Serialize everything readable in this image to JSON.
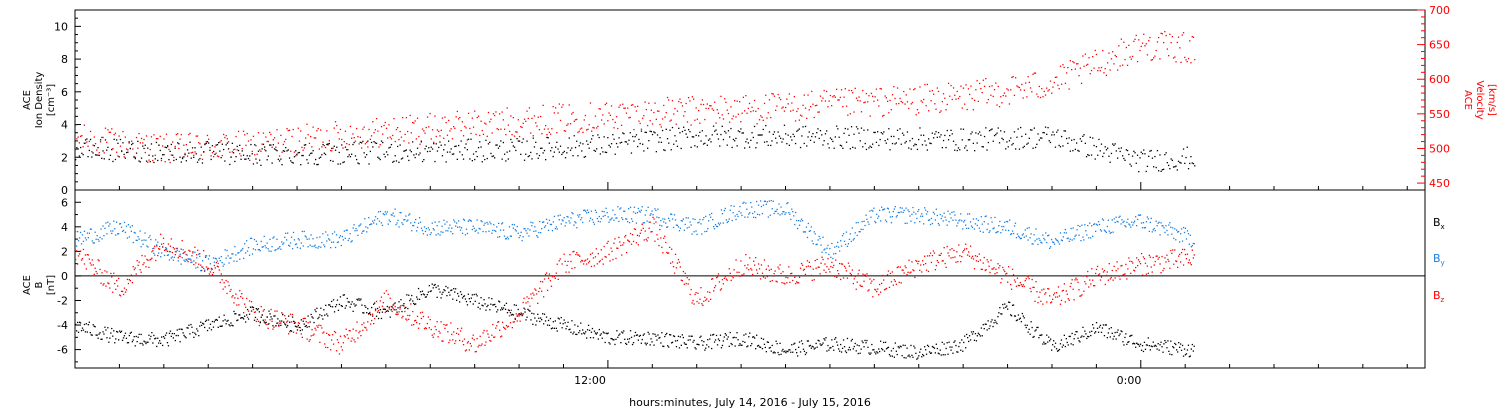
{
  "chart_data": [
    {
      "type": "scatter",
      "panel": "top",
      "ylabel_left": [
        "ACE",
        "Ion Density",
        "[cm⁻³]"
      ],
      "ylabel_right": [
        "ACE",
        "Velocity",
        "[km/s]"
      ],
      "ylim_left": [
        0,
        11
      ],
      "yticks_left": [
        0,
        2,
        4,
        6,
        8,
        10
      ],
      "ylim_right": [
        440,
        700
      ],
      "yticks_right": [
        450,
        500,
        550,
        600,
        650,
        700
      ],
      "colors": {
        "density": "#000000",
        "velocity": "#ff0000"
      },
      "series": [
        {
          "name": "Density",
          "axis": "left",
          "x": [
            0,
            2,
            4,
            6,
            8,
            10,
            12,
            14,
            16,
            18,
            20,
            22,
            24,
            25.2
          ],
          "y": [
            2.5,
            2.4,
            2.2,
            2.3,
            2.4,
            2.5,
            2.8,
            3.3,
            3.3,
            3.2,
            3.1,
            3.3,
            1.8,
            2.0
          ]
        },
        {
          "name": "Velocity",
          "axis": "right",
          "x": [
            0,
            2,
            4,
            6,
            8,
            10,
            12,
            14,
            16,
            18,
            20,
            22,
            24,
            25.2
          ],
          "y": [
            515,
            500,
            505,
            520,
            530,
            540,
            548,
            555,
            560,
            568,
            575,
            595,
            650,
            645
          ]
        }
      ]
    },
    {
      "type": "scatter",
      "panel": "bottom",
      "ylabel_left": [
        "ACE",
        "B",
        "[nT]"
      ],
      "ylim": [
        -7.5,
        7
      ],
      "yticks": [
        -6,
        -4,
        -2,
        0,
        2,
        4,
        6
      ],
      "zero_line": true,
      "legend": [
        "B",
        "B",
        "B"
      ],
      "legend_subscripts": [
        "x",
        "y",
        "z"
      ],
      "colors": {
        "bx": "#000000",
        "by": "#1a7fe0",
        "bz": "#ff0000"
      },
      "series": [
        {
          "name": "Bx",
          "x": [
            0,
            1,
            2,
            3,
            4,
            5,
            6,
            7,
            8,
            9,
            10,
            11,
            12,
            13,
            14,
            15,
            16,
            17,
            18,
            19,
            20,
            21,
            22,
            23,
            24,
            25.2
          ],
          "y": [
            -4,
            -5,
            -5.2,
            -4,
            -3,
            -4,
            -2,
            -3,
            -1,
            -2,
            -3,
            -4,
            -5,
            -5,
            -5.5,
            -5,
            -6,
            -5.5,
            -5.8,
            -6.2,
            -5.5,
            -2.5,
            -5.8,
            -4.2,
            -5.5,
            -6
          ]
        },
        {
          "name": "By",
          "x": [
            0,
            1,
            2,
            3,
            4,
            5,
            6,
            7,
            8,
            9,
            10,
            11,
            12,
            13,
            14,
            15,
            16,
            17,
            18,
            19,
            20,
            21,
            22,
            23,
            24,
            25.2
          ],
          "y": [
            3,
            4,
            2,
            1,
            2.5,
            3,
            3,
            5,
            4,
            4,
            3.5,
            4.5,
            5,
            5,
            4,
            5.5,
            5.5,
            2,
            5,
            5,
            4.5,
            4,
            2.8,
            4,
            4.5,
            3
          ]
        },
        {
          "name": "Bz",
          "x": [
            0,
            1,
            2,
            3,
            4,
            5,
            6,
            7,
            8,
            9,
            10,
            11,
            12,
            13,
            14,
            15,
            16,
            17,
            18,
            19,
            20,
            21,
            22,
            23,
            24,
            25.2
          ],
          "y": [
            2,
            -1,
            3,
            1,
            -3,
            -4,
            -5.5,
            -2,
            -4,
            -5.5,
            -3,
            1,
            2,
            4,
            -2,
            1,
            0,
            1,
            -1,
            1,
            2,
            0,
            -2,
            0,
            1,
            1.5
          ]
        }
      ],
      "x_ticks": [
        {
          "x": 12,
          "label": "12:00"
        },
        {
          "x": 24,
          "label": "0:00"
        }
      ],
      "xlim": [
        0,
        30.4
      ],
      "xlabel": "hours:minutes, July 14, 2016 - July 15, 2016"
    }
  ]
}
